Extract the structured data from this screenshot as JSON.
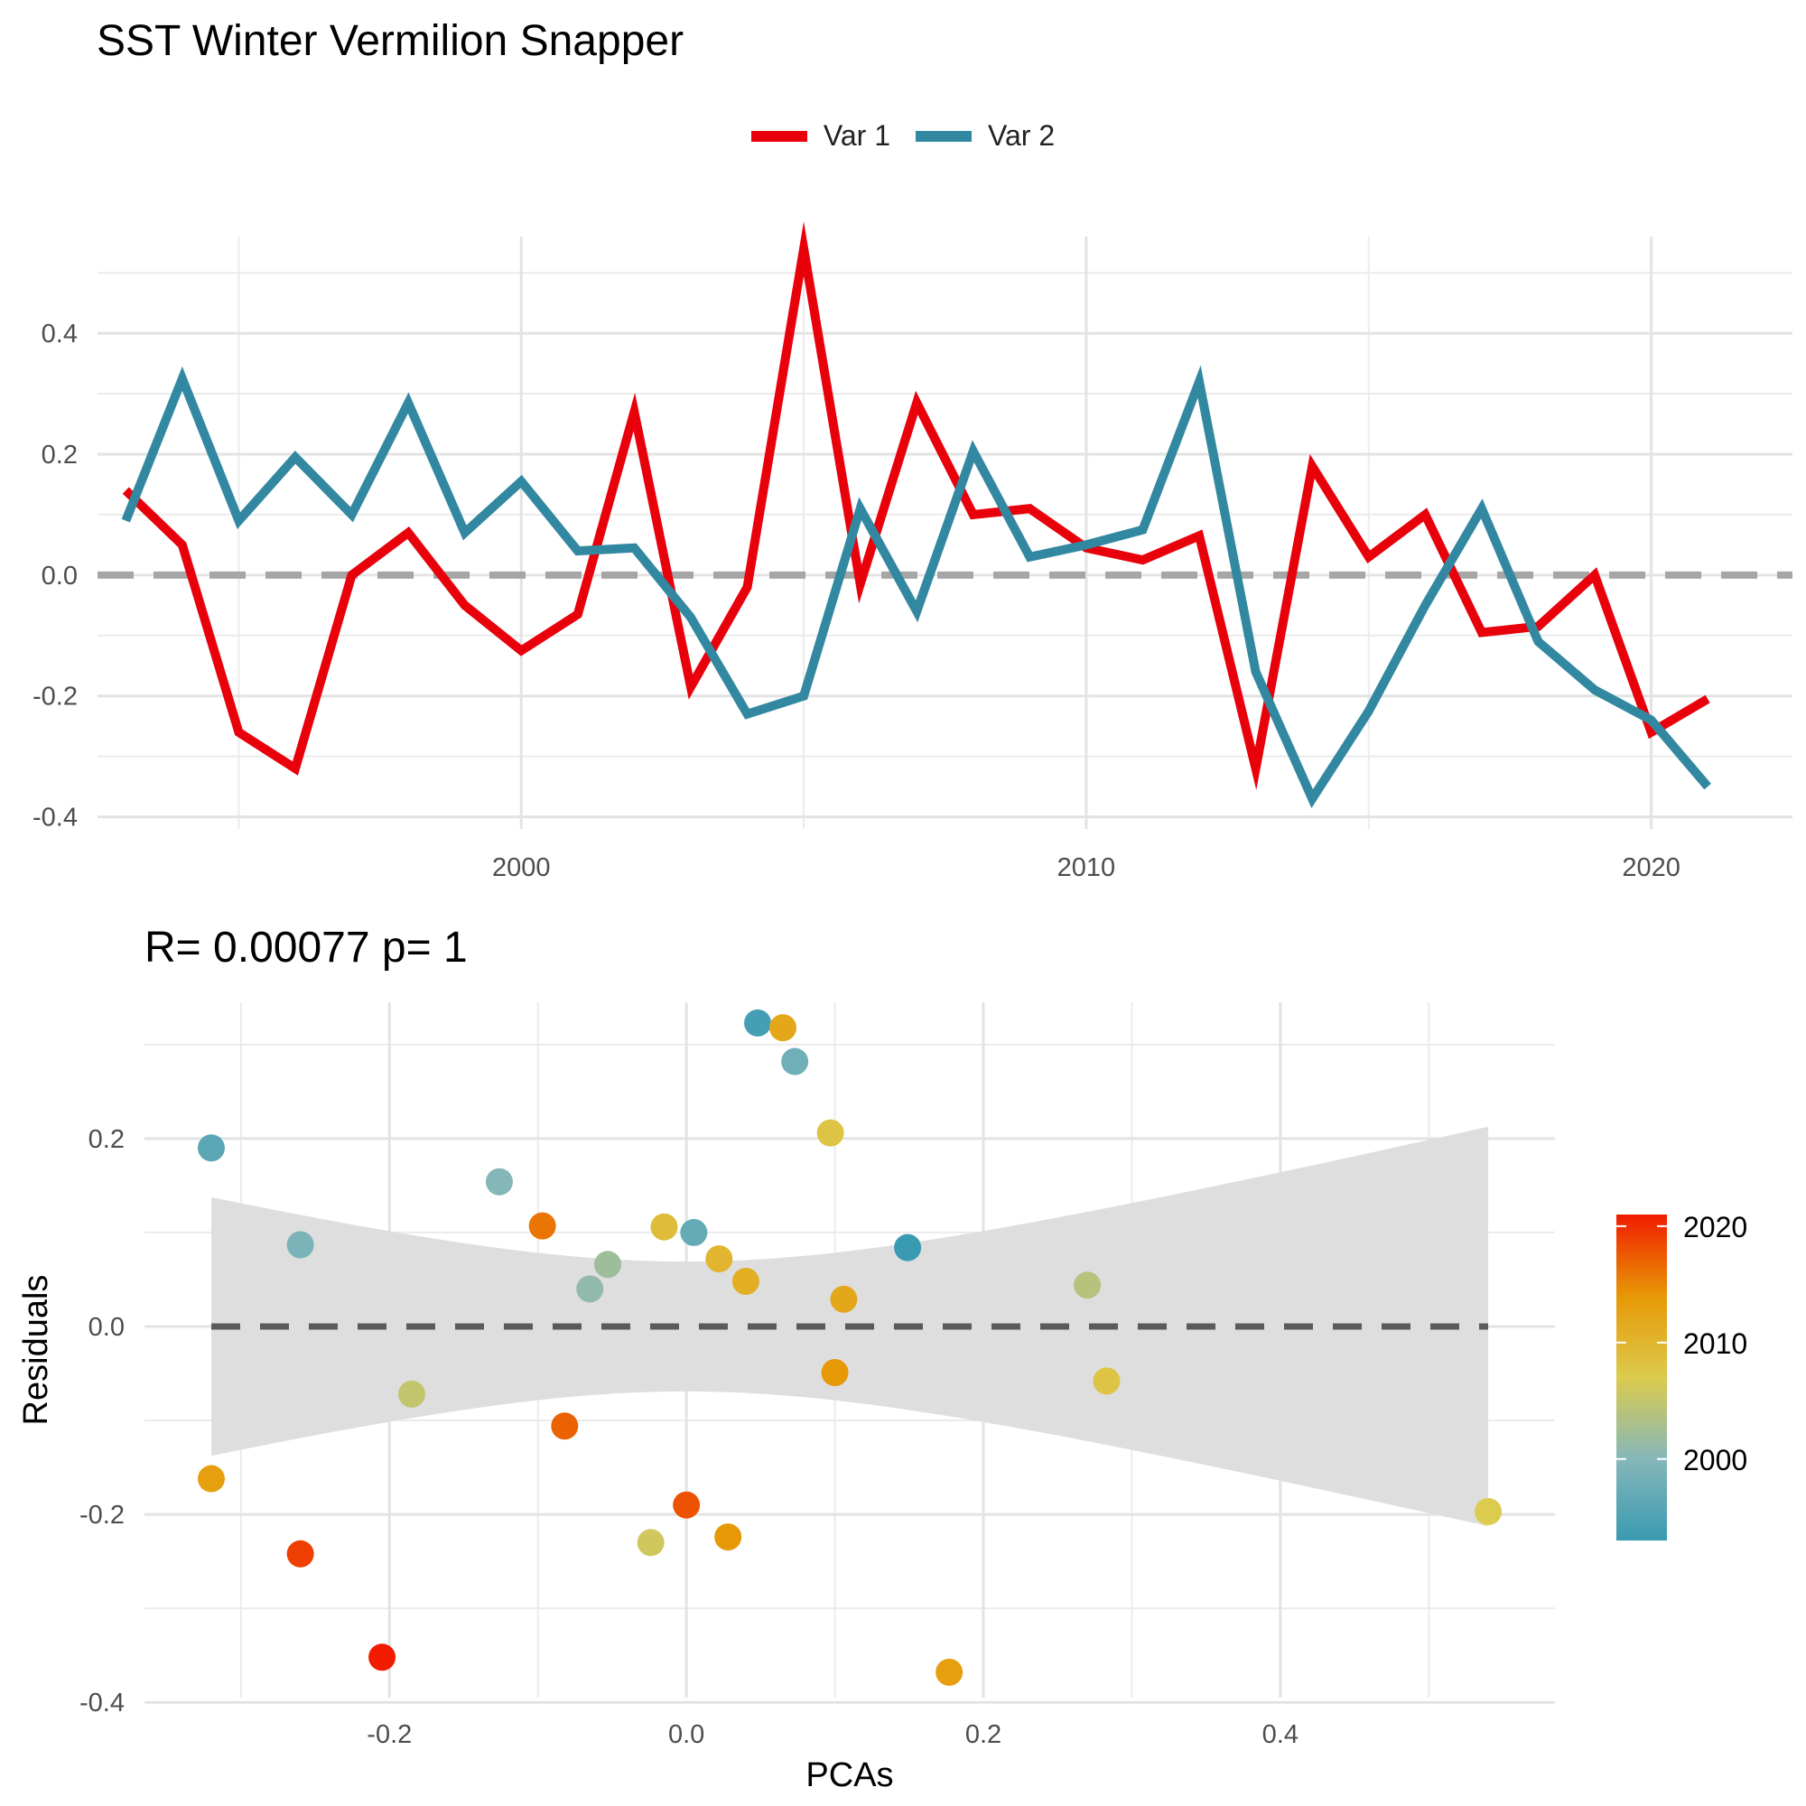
{
  "title": "SST Winter Vermilion Snapper",
  "chart_data": [
    {
      "type": "line",
      "title": "SST Winter Vermilion Snapper",
      "xlabel": "",
      "ylabel": "",
      "legend_position": "top",
      "x_ticks": [
        2000,
        2010,
        2020
      ],
      "y_ticks": [
        "-0.4",
        "-0.2",
        "0.0",
        "0.2",
        "0.4"
      ],
      "xlim": [
        1992.5,
        2022.5
      ],
      "ylim": [
        -0.42,
        0.56
      ],
      "reference_line": 0,
      "x": [
        1993,
        1994,
        1995,
        1996,
        1997,
        1998,
        1999,
        2000,
        2001,
        2002,
        2003,
        2004,
        2005,
        2006,
        2007,
        2008,
        2009,
        2010,
        2011,
        2012,
        2013,
        2014,
        2015,
        2016,
        2017,
        2018,
        2019,
        2020,
        2021
      ],
      "series": [
        {
          "name": "Var 1",
          "color": "#E8000B",
          "values": [
            0.14,
            0.05,
            -0.26,
            -0.32,
            0.0,
            0.07,
            -0.05,
            -0.125,
            -0.065,
            0.27,
            -0.185,
            -0.02,
            0.54,
            -0.015,
            0.285,
            0.1,
            0.11,
            0.045,
            0.025,
            0.065,
            -0.32,
            0.18,
            0.03,
            0.1,
            -0.095,
            -0.085,
            -0.0,
            -0.26,
            -0.205
          ]
        },
        {
          "name": "Var 2",
          "color": "#3388A1",
          "values": [
            0.09,
            0.325,
            0.09,
            0.195,
            0.1,
            0.285,
            0.07,
            0.155,
            0.04,
            0.045,
            -0.07,
            -0.23,
            -0.2,
            0.11,
            -0.06,
            0.205,
            0.03,
            0.05,
            0.075,
            0.32,
            -0.16,
            -0.37,
            -0.225,
            -0.05,
            0.11,
            -0.11,
            -0.19,
            -0.24,
            -0.35
          ]
        }
      ]
    },
    {
      "type": "scatter",
      "title": "R= 0.00077  p= 1",
      "xlabel": "PCAs",
      "ylabel": "Residuals",
      "x_ticks": [
        "-0.2",
        "0.0",
        "0.2",
        "0.4"
      ],
      "y_ticks": [
        "-0.4",
        "-0.2",
        "0.0",
        "0.2"
      ],
      "xlim": [
        -0.365,
        0.585
      ],
      "ylim": [
        -0.395,
        0.345
      ],
      "reference_line": 0,
      "colorbar": {
        "ticks": [
          2000,
          2010,
          2020
        ],
        "range": [
          1993,
          2021
        ]
      },
      "points": [
        {
          "x": -0.32,
          "y": 0.19,
          "year": 1996
        },
        {
          "x": -0.26,
          "y": 0.087,
          "year": 1999
        },
        {
          "x": -0.126,
          "y": 0.154,
          "year": 2000
        },
        {
          "x": -0.065,
          "y": 0.04,
          "year": 2001
        },
        {
          "x": -0.053,
          "y": 0.066,
          "year": 2002
        },
        {
          "x": 0.005,
          "y": 0.1,
          "year": 1997
        },
        {
          "x": 0.048,
          "y": 0.323,
          "year": 1994
        },
        {
          "x": 0.073,
          "y": 0.282,
          "year": 1998
        },
        {
          "x": 0.149,
          "y": 0.084,
          "year": 1993
        },
        {
          "x": 0.27,
          "y": 0.044,
          "year": 2004
        },
        {
          "x": -0.185,
          "y": -0.072,
          "year": 2005
        },
        {
          "x": -0.024,
          "y": -0.23,
          "year": 2006
        },
        {
          "x": -0.015,
          "y": 0.106,
          "year": 2009
        },
        {
          "x": 0.022,
          "y": 0.072,
          "year": 2010
        },
        {
          "x": 0.04,
          "y": 0.048,
          "year": 2011
        },
        {
          "x": 0.106,
          "y": 0.029,
          "year": 2012
        },
        {
          "x": 0.283,
          "y": -0.058,
          "year": 2008
        },
        {
          "x": 0.54,
          "y": -0.197,
          "year": 2007
        },
        {
          "x": 0.097,
          "y": 0.206,
          "year": 2008
        },
        {
          "x": 0.065,
          "y": 0.318,
          "year": 2012
        },
        {
          "x": 0.1,
          "y": -0.049,
          "year": 2014
        },
        {
          "x": -0.32,
          "y": -0.162,
          "year": 2013
        },
        {
          "x": 0.028,
          "y": -0.224,
          "year": 2014
        },
        {
          "x": 0.177,
          "y": -0.368,
          "year": 2013
        },
        {
          "x": -0.097,
          "y": 0.107,
          "year": 2016
        },
        {
          "x": -0.082,
          "y": -0.106,
          "year": 2017
        },
        {
          "x": 0.0,
          "y": -0.19,
          "year": 2018
        },
        {
          "x": -0.26,
          "y": -0.242,
          "year": 2019
        },
        {
          "x": -0.205,
          "y": -0.352,
          "year": 2021
        }
      ]
    }
  ]
}
